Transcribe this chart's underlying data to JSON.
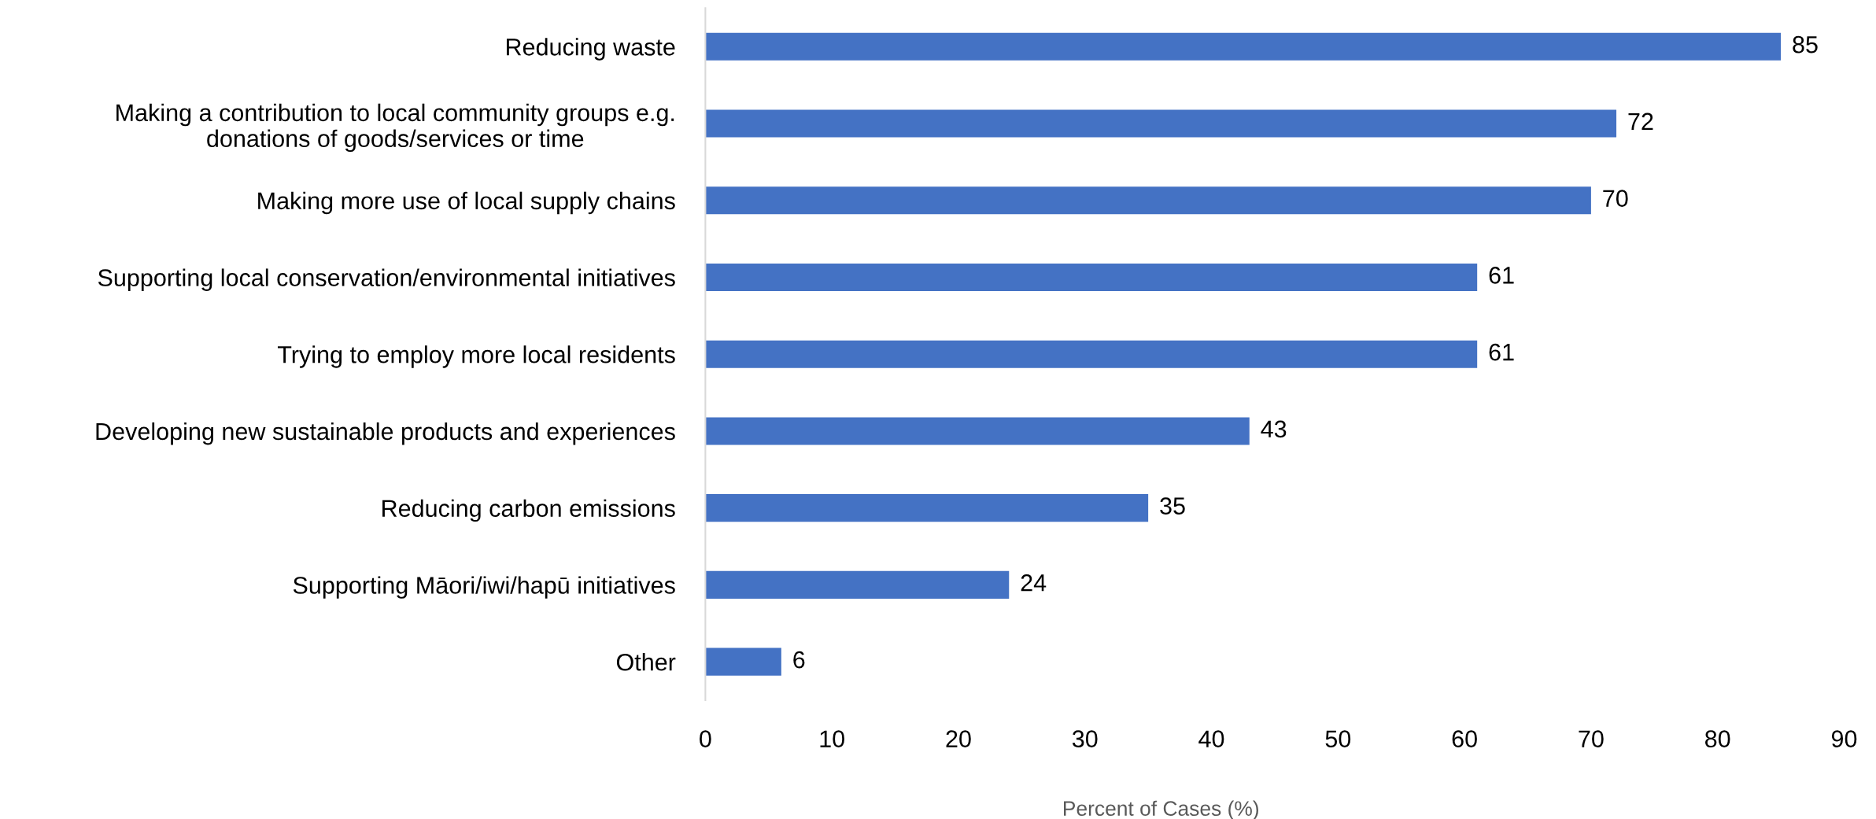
{
  "chart_data": {
    "type": "bar",
    "orientation": "horizontal",
    "categories": [
      "Reducing waste",
      "Making a contribution to local community groups e.g.\ndonations of goods/services or time",
      "Making more use of local supply chains",
      "Supporting local conservation/environmental initiatives",
      "Trying to employ more local residents",
      "Developing new sustainable products and experiences",
      "Reducing carbon emissions",
      "Supporting Māori/iwi/hapū initiatives",
      "Other"
    ],
    "values": [
      85,
      72,
      70,
      61,
      61,
      43,
      35,
      24,
      6
    ],
    "color": "#4472c4",
    "data_labels": true,
    "xlabel": "Percent of Cases (%)",
    "xlim": [
      0,
      90
    ],
    "xticks": [
      0,
      10,
      20,
      30,
      40,
      50,
      60,
      70,
      80,
      90
    ]
  }
}
